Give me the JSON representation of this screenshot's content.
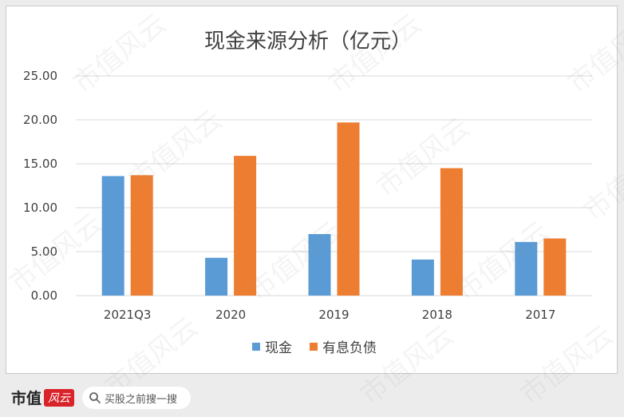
{
  "chart_data": {
    "type": "bar",
    "title": "现金来源分析（亿元）",
    "categories": [
      "2021Q3",
      "2020",
      "2019",
      "2018",
      "2017"
    ],
    "series": [
      {
        "name": "现金",
        "color": "#5b9bd5",
        "values": [
          13.6,
          4.3,
          7.0,
          4.1,
          6.1
        ]
      },
      {
        "name": "有息负债",
        "color": "#ed7d31",
        "values": [
          13.7,
          15.9,
          19.7,
          14.5,
          6.5
        ]
      }
    ],
    "yticks": [
      "0.00",
      "5.00",
      "10.00",
      "15.00",
      "20.00",
      "25.00"
    ],
    "ylim": [
      0,
      25
    ],
    "xlabel": "",
    "ylabel": "",
    "grid": true,
    "legend_position": "bottom"
  },
  "watermark": {
    "text": "市值风云"
  },
  "footer": {
    "brand_text": "市值",
    "brand_logo": "风云",
    "search_placeholder": "买股之前搜一搜",
    "search_icon": "search-icon"
  }
}
